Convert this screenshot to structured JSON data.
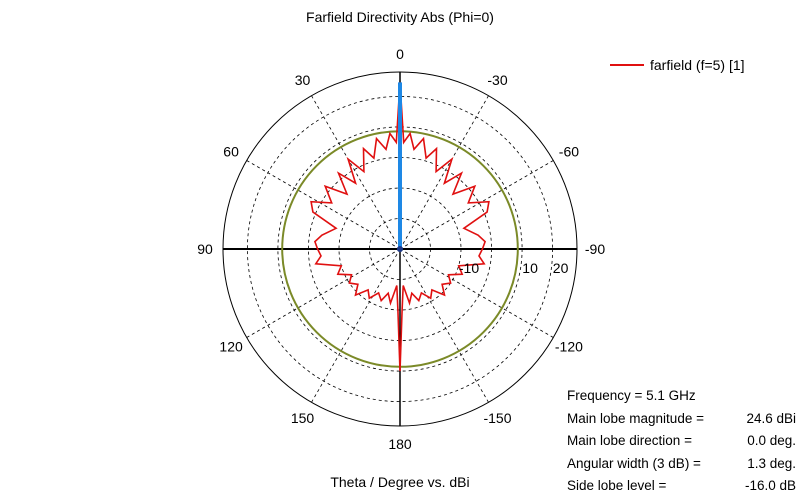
{
  "title": "Farfield Directivity Abs (Phi=0)",
  "footer": "Theta / Degree vs. dBi",
  "legend": {
    "label": "farfield (f=5) [1]",
    "color": "#e01010"
  },
  "summary": [
    {
      "key": "Frequency = 5.1 GHz",
      "value": ""
    },
    {
      "key": "Main lobe magnitude =",
      "value": "24.6 dBi"
    },
    {
      "key": "Main lobe direction =",
      "value": "0.0 deg."
    },
    {
      "key": "Angular width (3 dB) =",
      "value": "1.3 deg."
    },
    {
      "key": "Side lobe level =",
      "value": "-16.0 dB"
    }
  ],
  "chart_data": {
    "type": "polar",
    "title": "Farfield Directivity Abs (Phi=0)",
    "xlabel": "Theta / Degree vs. dBi",
    "angle_ticks": [
      {
        "angle": 0,
        "label": "0"
      },
      {
        "angle": 30,
        "label": "30"
      },
      {
        "angle": 60,
        "label": "60"
      },
      {
        "angle": 90,
        "label": "90"
      },
      {
        "angle": 120,
        "label": "120"
      },
      {
        "angle": 150,
        "label": "150"
      },
      {
        "angle": 180,
        "label": "180"
      },
      {
        "angle": -150,
        "label": "-150"
      },
      {
        "angle": -120,
        "label": "-120"
      },
      {
        "angle": -90,
        "label": "-90"
      },
      {
        "angle": -60,
        "label": "-60"
      },
      {
        "angle": -30,
        "label": "-30"
      }
    ],
    "radial_range": [
      -30,
      28
    ],
    "radial_ticks": [
      -10,
      10,
      20
    ],
    "radial_tick_labels": [
      "-10",
      "10",
      "20"
    ],
    "rings": [
      -20,
      -10,
      0,
      10,
      20
    ],
    "reference_circle": {
      "level": 8.6,
      "color": "#7b8a28"
    },
    "main_lobe": {
      "angle": 0,
      "magnitude": 24.6,
      "color": "#1e88e5"
    },
    "series": [
      {
        "name": "farfield (f=5) [1]",
        "color": "#e01010",
        "points": [
          [
            0,
            24.6
          ],
          [
            2,
            5
          ],
          [
            5,
            8
          ],
          [
            8,
            3
          ],
          [
            12,
            7
          ],
          [
            16,
            1
          ],
          [
            20,
            5
          ],
          [
            25,
            -2
          ],
          [
            30,
            4
          ],
          [
            34,
            -4
          ],
          [
            39,
            2
          ],
          [
            44,
            -5
          ],
          [
            50,
            2
          ],
          [
            56,
            -3
          ],
          [
            62,
            3
          ],
          [
            67,
            1
          ],
          [
            72,
            -8
          ],
          [
            80,
            -4
          ],
          [
            85,
            -2
          ],
          [
            90,
            -3
          ],
          [
            95,
            -4
          ],
          [
            100,
            -2
          ],
          [
            106,
            -10
          ],
          [
            112,
            -8
          ],
          [
            118,
            -12
          ],
          [
            124,
            -10
          ],
          [
            130,
            -12
          ],
          [
            136,
            -9
          ],
          [
            142,
            -13
          ],
          [
            148,
            -11
          ],
          [
            154,
            -14
          ],
          [
            160,
            -12
          ],
          [
            165,
            -15
          ],
          [
            170,
            -12
          ],
          [
            175,
            -18
          ],
          [
            178,
            -10
          ],
          [
            180,
            10
          ],
          [
            182,
            -10
          ],
          [
            185,
            -18
          ],
          [
            190,
            -12
          ],
          [
            195,
            -15
          ],
          [
            200,
            -12
          ],
          [
            206,
            -14
          ],
          [
            212,
            -11
          ],
          [
            218,
            -13
          ],
          [
            224,
            -9
          ],
          [
            230,
            -12
          ],
          [
            236,
            -10
          ],
          [
            242,
            -12
          ],
          [
            248,
            -8
          ],
          [
            254,
            -10
          ],
          [
            260,
            -2
          ],
          [
            265,
            -4
          ],
          [
            270,
            -3
          ],
          [
            275,
            -2
          ],
          [
            280,
            -4
          ],
          [
            288,
            -8
          ],
          [
            293,
            1
          ],
          [
            298,
            3
          ],
          [
            304,
            -3
          ],
          [
            310,
            2
          ],
          [
            316,
            -5
          ],
          [
            321,
            2
          ],
          [
            326,
            -4
          ],
          [
            330,
            4
          ],
          [
            335,
            -2
          ],
          [
            340,
            5
          ],
          [
            344,
            1
          ],
          [
            348,
            7
          ],
          [
            352,
            3
          ],
          [
            355,
            8
          ],
          [
            358,
            5
          ],
          [
            360,
            24.6
          ]
        ]
      }
    ]
  }
}
